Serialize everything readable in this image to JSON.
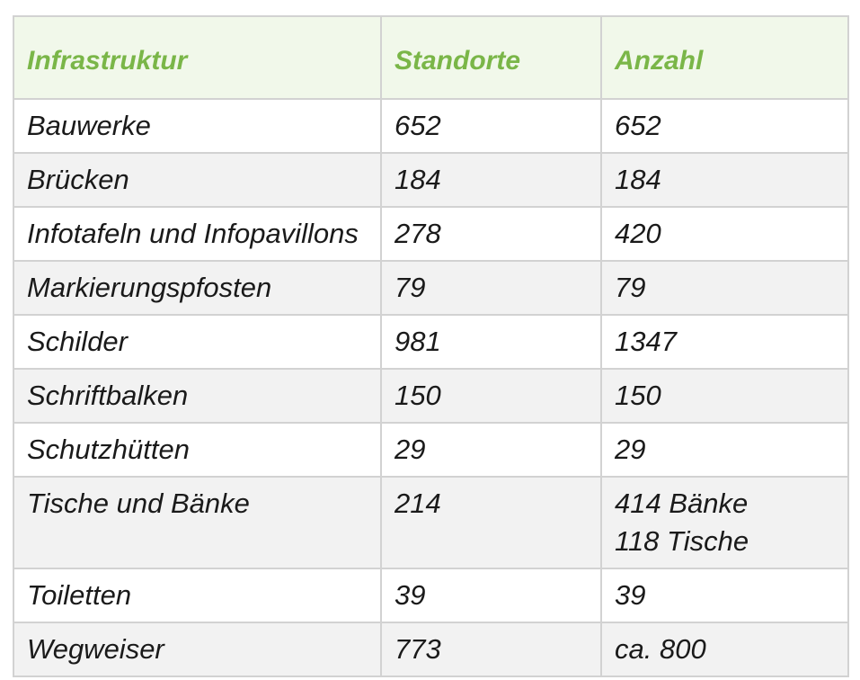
{
  "table": {
    "headers": [
      "Infrastruktur",
      "Standorte",
      "Anzahl"
    ],
    "rows": [
      {
        "name": "Bauwerke",
        "standorte": "652",
        "anzahl": [
          "652"
        ]
      },
      {
        "name": "Brücken",
        "standorte": "184",
        "anzahl": [
          "184"
        ]
      },
      {
        "name": "Infotafeln und Infopavillons",
        "standorte": "278",
        "anzahl": [
          "420"
        ]
      },
      {
        "name": "Markierungspfosten",
        "standorte": "79",
        "anzahl": [
          "79"
        ]
      },
      {
        "name": "Schilder",
        "standorte": "981",
        "anzahl": [
          "1347"
        ]
      },
      {
        "name": "Schriftbalken",
        "standorte": "150",
        "anzahl": [
          "150"
        ]
      },
      {
        "name": "Schutzhütten",
        "standorte": "29",
        "anzahl": [
          "29"
        ]
      },
      {
        "name": "Tische und Bänke",
        "standorte": "214",
        "anzahl": [
          "414 Bänke",
          "118 Tische"
        ]
      },
      {
        "name": "Toiletten",
        "standorte": "39",
        "anzahl": [
          "39"
        ]
      },
      {
        "name": "Wegweiser",
        "standorte": "773",
        "anzahl": [
          "ca. 800"
        ]
      }
    ]
  },
  "colors": {
    "header_text": "#7ab648",
    "header_bg": "#f1f8ea",
    "stripe_bg": "#f2f2f2",
    "border": "#d2d2d2"
  }
}
